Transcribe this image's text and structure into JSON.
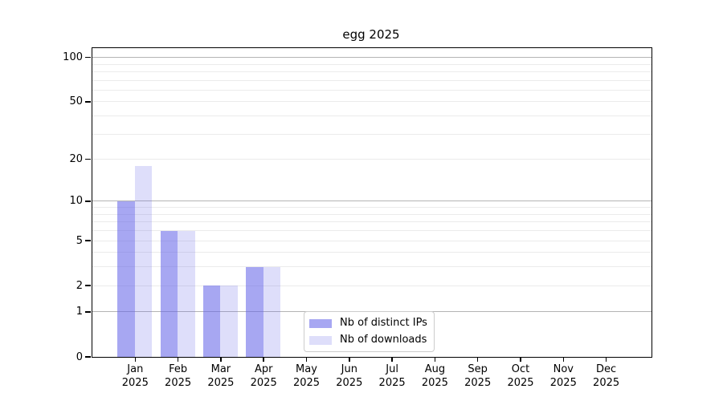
{
  "chart_data": {
    "type": "bar",
    "title": "egg 2025",
    "categories": [
      "Jan",
      "Feb",
      "Mar",
      "Apr",
      "May",
      "Jun",
      "Jul",
      "Aug",
      "Sep",
      "Oct",
      "Nov",
      "Dec"
    ],
    "year_label": "2025",
    "series": [
      {
        "name": "Nb of distinct IPs",
        "values": [
          10,
          6,
          2,
          3,
          0,
          0,
          0,
          0,
          0,
          0,
          0,
          0
        ],
        "color_rgba": "rgba(98,98,232,0.56)",
        "color_on_white": "#a7a7f2"
      },
      {
        "name": "Nb of downloads",
        "values": [
          18,
          6,
          2,
          3,
          0,
          0,
          0,
          0,
          0,
          0,
          0,
          0
        ],
        "color_rgba": "rgba(98,98,232,0.21)",
        "color_on_white": "#dedefa"
      }
    ],
    "yscale": "log1p",
    "ylim": [
      0,
      115
    ],
    "yticks": [
      100,
      50,
      20,
      10,
      5,
      2,
      1,
      0
    ],
    "y_major_gridlines": [
      1,
      10,
      100
    ],
    "y_minor_gridlines": [
      2,
      3,
      4,
      5,
      6,
      7,
      8,
      9,
      20,
      30,
      40,
      50,
      60,
      70,
      80,
      90
    ],
    "grid": true,
    "legend_position": "inside bottom, left of center",
    "colors": {
      "major_grid": "#b4b4b4",
      "minor_grid": "#ebebeb",
      "axis": "#000000",
      "background": "#ffffff"
    }
  }
}
